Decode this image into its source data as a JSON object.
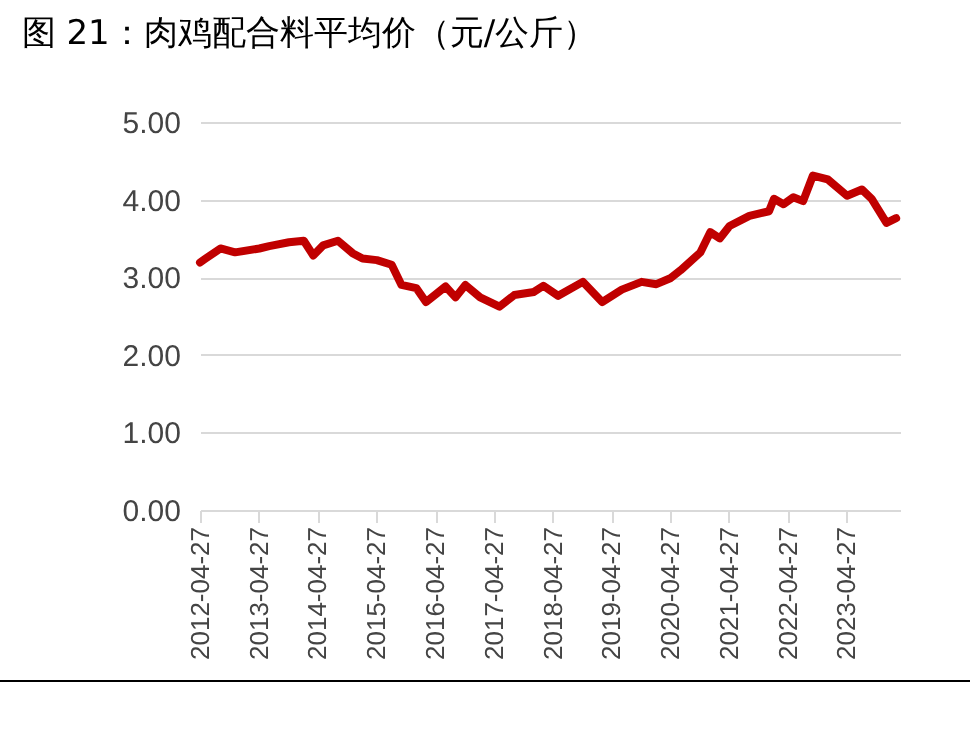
{
  "chart_data": {
    "type": "line",
    "title": "图 21：肉鸡配合料平均价（元/公斤）",
    "x": [
      "2012-04-27",
      "2012-06",
      "2012-09",
      "2012-12",
      "2013-05",
      "2013-07",
      "2013-11",
      "2014-02",
      "2014-04",
      "2014-06",
      "2014-09",
      "2014-12",
      "2015-02",
      "2015-05",
      "2015-08",
      "2015-10",
      "2016-01",
      "2016-03",
      "2016-07",
      "2016-09",
      "2016-11",
      "2017-02",
      "2017-06",
      "2017-09",
      "2018-01",
      "2018-03",
      "2018-06",
      "2018-11",
      "2019-03",
      "2019-07",
      "2019-11",
      "2020-02",
      "2020-05",
      "2020-07",
      "2020-11",
      "2021-01",
      "2021-03",
      "2021-05",
      "2021-09",
      "2022-01",
      "2022-02",
      "2022-04",
      "2022-06",
      "2022-08",
      "2022-10",
      "2023-01",
      "2023-05",
      "2023-08",
      "2023-10",
      "2024-01",
      "2024-03"
    ],
    "series": [
      {
        "color": "#c00000",
        "values": [
          3.19,
          3.24,
          3.37,
          3.32,
          3.37,
          3.4,
          3.45,
          3.47,
          3.28,
          3.41,
          3.47,
          3.31,
          3.24,
          3.22,
          3.16,
          2.9,
          2.86,
          2.68,
          2.88,
          2.74,
          2.9,
          2.74,
          2.62,
          2.77,
          2.81,
          2.89,
          2.76,
          2.94,
          2.68,
          2.84,
          2.94,
          2.91,
          2.99,
          3.09,
          3.32,
          3.58,
          3.5,
          3.66,
          3.79,
          3.85,
          4.01,
          3.94,
          4.03,
          3.98,
          4.31,
          4.26,
          4.05,
          4.13,
          4.01,
          3.7,
          3.76
        ]
      }
    ],
    "xlim": [
      "2012-04-27",
      "2024-03-25"
    ],
    "xticks": [
      "2012-04-27",
      "2013-04-27",
      "2014-04-27",
      "2015-04-27",
      "2016-04-27",
      "2017-04-27",
      "2018-04-27",
      "2019-04-27",
      "2020-04-27",
      "2021-04-27",
      "2022-04-27",
      "2023-04-27"
    ],
    "ylim": [
      0,
      5
    ],
    "yticks": [
      {
        "value": 0,
        "label": "0.00"
      },
      {
        "value": 1,
        "label": "1.00"
      },
      {
        "value": 2,
        "label": "2.00"
      },
      {
        "value": 3,
        "label": "3.00"
      },
      {
        "value": 4,
        "label": "4.00"
      },
      {
        "value": 5,
        "label": "5.00"
      }
    ],
    "grid": "y",
    "marker": "none",
    "line_style": "solid",
    "legend": false
  }
}
